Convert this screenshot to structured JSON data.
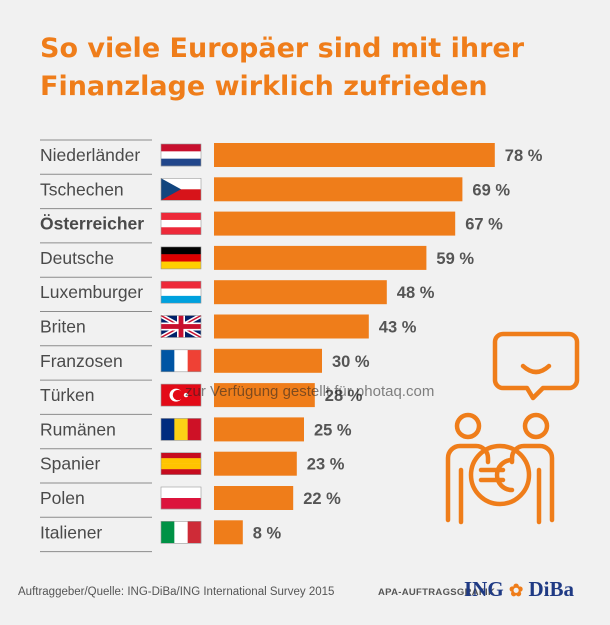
{
  "title": "So viele Europäer sind mit ihrer Finanzlage wirklich zufrieden",
  "footer": {
    "source": "Auftraggeber/Quelle: ING-DiBa/ING International Survey 2015",
    "apa": "APA-AUFTRAGSGRAFIK",
    "logo_left": "ING",
    "logo_right": "DiBa",
    "watermark": "zur Verfügung gestellt für photaq.com"
  },
  "colors": {
    "accent": "#ef7d1a",
    "text": "#4a4a4a",
    "background": "#f1f1f1"
  },
  "chart_data": {
    "type": "bar",
    "orientation": "horizontal",
    "categories": [
      "Niederländer",
      "Tschechen",
      "Österreicher",
      "Deutsche",
      "Luxemburger",
      "Briten",
      "Franzosen",
      "Türken",
      "Rumänen",
      "Spanier",
      "Polen",
      "Italiener"
    ],
    "values": [
      78,
      69,
      67,
      59,
      48,
      43,
      30,
      28,
      25,
      23,
      22,
      8
    ],
    "value_labels": [
      "78 %",
      "69 %",
      "67 %",
      "59 %",
      "48 %",
      "43 %",
      "30 %",
      "28 %",
      "25 %",
      "23 %",
      "22 %",
      "8 %"
    ],
    "highlighted": "Österreicher",
    "flags": [
      "netherlands-flag",
      "czech-flag",
      "austria-flag",
      "germany-flag",
      "luxembourg-flag",
      "uk-flag",
      "france-flag",
      "turkey-flag",
      "romania-flag",
      "spain-flag",
      "poland-flag",
      "italy-flag"
    ],
    "bar_color": "#ef7d1a"
  }
}
